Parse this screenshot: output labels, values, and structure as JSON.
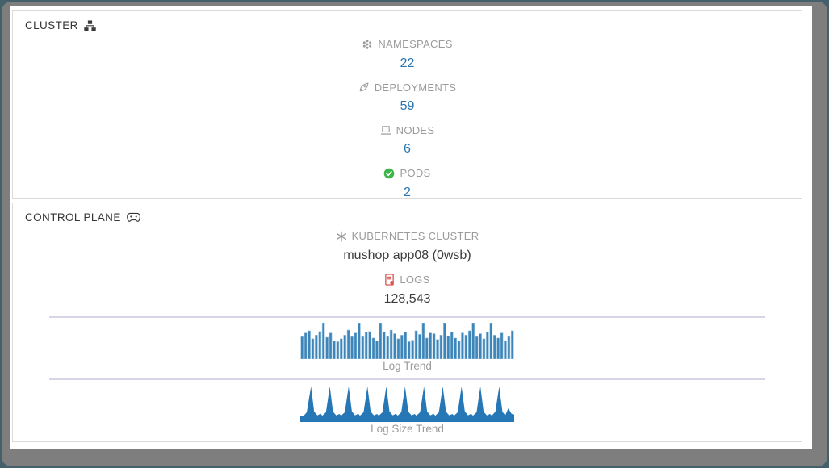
{
  "cluster_panel": {
    "title": "CLUSTER",
    "stats": [
      {
        "label": "NAMESPACES",
        "value": "22",
        "icon": "namespaces-icon"
      },
      {
        "label": "DEPLOYMENTS",
        "value": "59",
        "icon": "rocket-icon"
      },
      {
        "label": "NODES",
        "value": "6",
        "icon": "node-laptop-icon"
      },
      {
        "label": "PODS",
        "value": "2",
        "icon": "pods-check-icon"
      }
    ]
  },
  "control_plane_panel": {
    "title": "CONTROL PLANE",
    "kubernetes_cluster_label": "KUBERNETES CLUSTER",
    "kubernetes_cluster_value": "mushop app08 (0wsb)",
    "logs_label": "LOGS",
    "logs_value": "128,543"
  },
  "colors": {
    "value_link_blue": "#2a76ae",
    "label_gray": "#9b9b9b",
    "bar_fill": "#3d85b8",
    "bar_stroke": "#a3c8e2",
    "area_fill": "#2577b5",
    "pods_green": "#3cb44a",
    "logs_red": "#d9534f",
    "divider_lavender": "#d9d4e8"
  },
  "chart_data": [
    {
      "type": "bar",
      "title": "Log Trend",
      "ylim": [
        0,
        100
      ],
      "color": "#3d85b8",
      "values": [
        62,
        72,
        78,
        56,
        66,
        76,
        100,
        60,
        72,
        50,
        48,
        56,
        66,
        80,
        62,
        72,
        100,
        62,
        74,
        76,
        58,
        50,
        100,
        74,
        62,
        80,
        70,
        56,
        66,
        74,
        48,
        52,
        78,
        68,
        100,
        58,
        72,
        70,
        54,
        66,
        100,
        64,
        74,
        58,
        50,
        72,
        66,
        78,
        100,
        62,
        70,
        56,
        74,
        100,
        66,
        58,
        72,
        50,
        62,
        78
      ]
    },
    {
      "type": "area",
      "title": "Log Size Trend",
      "ylim": [
        0,
        100
      ],
      "color": "#2577b5",
      "points": [
        [
          0,
          14
        ],
        [
          1.5,
          13
        ],
        [
          3,
          24
        ],
        [
          5,
          100
        ],
        [
          6.5,
          26
        ],
        [
          8,
          15
        ],
        [
          9.5,
          20
        ],
        [
          10.3,
          14
        ],
        [
          12,
          24
        ],
        [
          13.8,
          100
        ],
        [
          15.3,
          26
        ],
        [
          16.8,
          15
        ],
        [
          18.3,
          19
        ],
        [
          19.1,
          14
        ],
        [
          20.8,
          24
        ],
        [
          22.6,
          100
        ],
        [
          24.1,
          27
        ],
        [
          25.6,
          15
        ],
        [
          27.1,
          20
        ],
        [
          27.9,
          14
        ],
        [
          29.6,
          24
        ],
        [
          31.4,
          100
        ],
        [
          32.9,
          26
        ],
        [
          34.4,
          15
        ],
        [
          35.9,
          19
        ],
        [
          36.7,
          14
        ],
        [
          38.4,
          24
        ],
        [
          40.2,
          100
        ],
        [
          41.7,
          27
        ],
        [
          43.2,
          15
        ],
        [
          44.7,
          20
        ],
        [
          45.5,
          14
        ],
        [
          47.2,
          24
        ],
        [
          49,
          100
        ],
        [
          50.5,
          26
        ],
        [
          52,
          15
        ],
        [
          53.5,
          19
        ],
        [
          54.3,
          14
        ],
        [
          56,
          24
        ],
        [
          57.8,
          100
        ],
        [
          59.3,
          27
        ],
        [
          60.8,
          15
        ],
        [
          62.3,
          20
        ],
        [
          63.1,
          14
        ],
        [
          64.8,
          24
        ],
        [
          66.6,
          100
        ],
        [
          68.1,
          26
        ],
        [
          69.6,
          15
        ],
        [
          71.1,
          19
        ],
        [
          71.9,
          14
        ],
        [
          73.6,
          24
        ],
        [
          75.4,
          100
        ],
        [
          76.9,
          27
        ],
        [
          78.4,
          15
        ],
        [
          79.9,
          20
        ],
        [
          80.7,
          14
        ],
        [
          82.4,
          24
        ],
        [
          84.2,
          100
        ],
        [
          85.7,
          26
        ],
        [
          87.2,
          15
        ],
        [
          88.7,
          19
        ],
        [
          89.5,
          14
        ],
        [
          91.2,
          26
        ],
        [
          93,
          100
        ],
        [
          94.5,
          26
        ],
        [
          95.8,
          15
        ],
        [
          97.3,
          36
        ],
        [
          98.7,
          20
        ],
        [
          100,
          17
        ]
      ]
    }
  ]
}
